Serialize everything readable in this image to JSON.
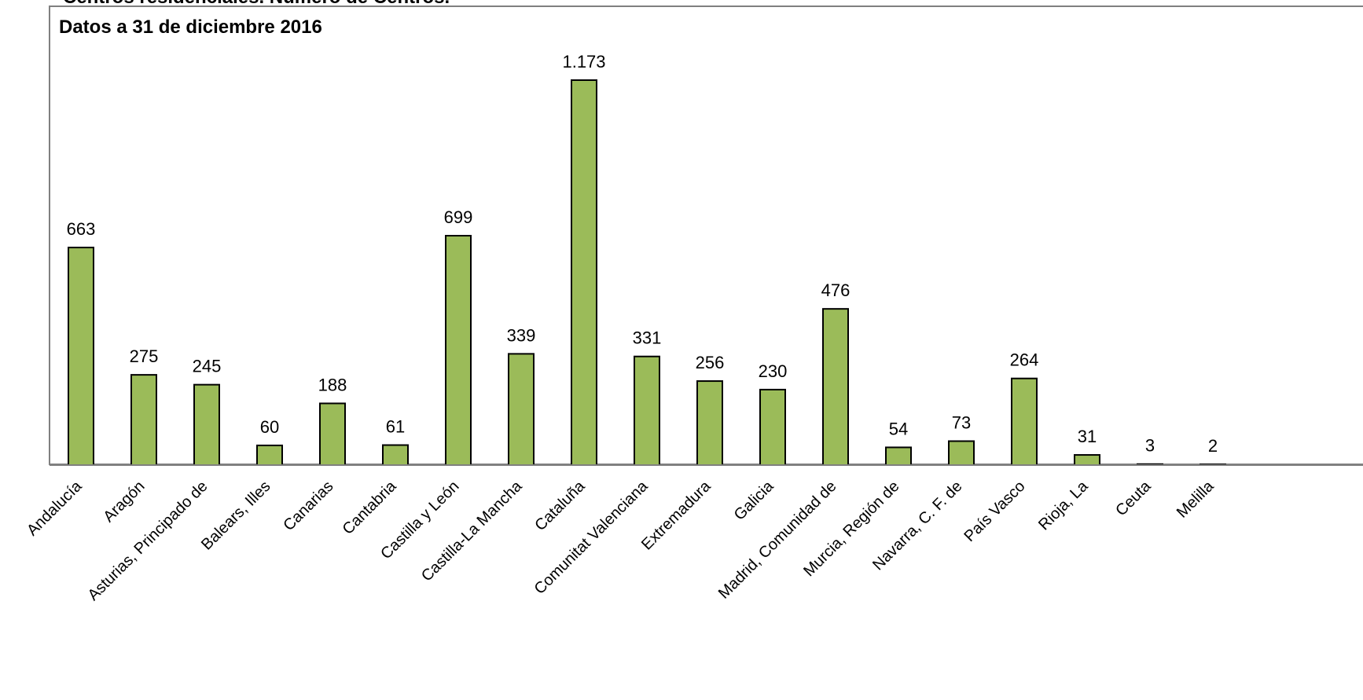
{
  "chart_data": {
    "type": "bar",
    "title": "Centros residenciales. Número de Centros.",
    "subtitle": "Datos a 31 de diciembre 2016",
    "categories": [
      "Andalucía",
      "Aragón",
      "Asturias, Principado de",
      "Balears, Illes",
      "Canarias",
      "Cantabria",
      "Castilla y León",
      "Castilla-La Mancha",
      "Cataluña",
      "Comunitat Valenciana",
      "Extremadura",
      "Galicia",
      "Madrid, Comunidad de",
      "Murcia, Región de",
      "Navarra, C. F. de",
      "País Vasco",
      "Rioja, La",
      "Ceuta",
      "Melilla"
    ],
    "values": [
      663,
      275,
      245,
      60,
      188,
      61,
      699,
      339,
      1173,
      331,
      256,
      230,
      476,
      54,
      73,
      264,
      31,
      3,
      2
    ],
    "value_labels": [
      "663",
      "275",
      "245",
      "60",
      "188",
      "61",
      "699",
      "339",
      "1.173",
      "331",
      "256",
      "230",
      "476",
      "54",
      "73",
      "264",
      "31",
      "3",
      "2"
    ],
    "xlabel": "",
    "ylabel": "",
    "ylim": [
      0,
      1173
    ],
    "grid": false,
    "legend": "none",
    "colors": {
      "bar_fill": "#9bbb59",
      "bar_stroke": "#000000",
      "frame": "#808080",
      "axis": "#808080"
    }
  }
}
